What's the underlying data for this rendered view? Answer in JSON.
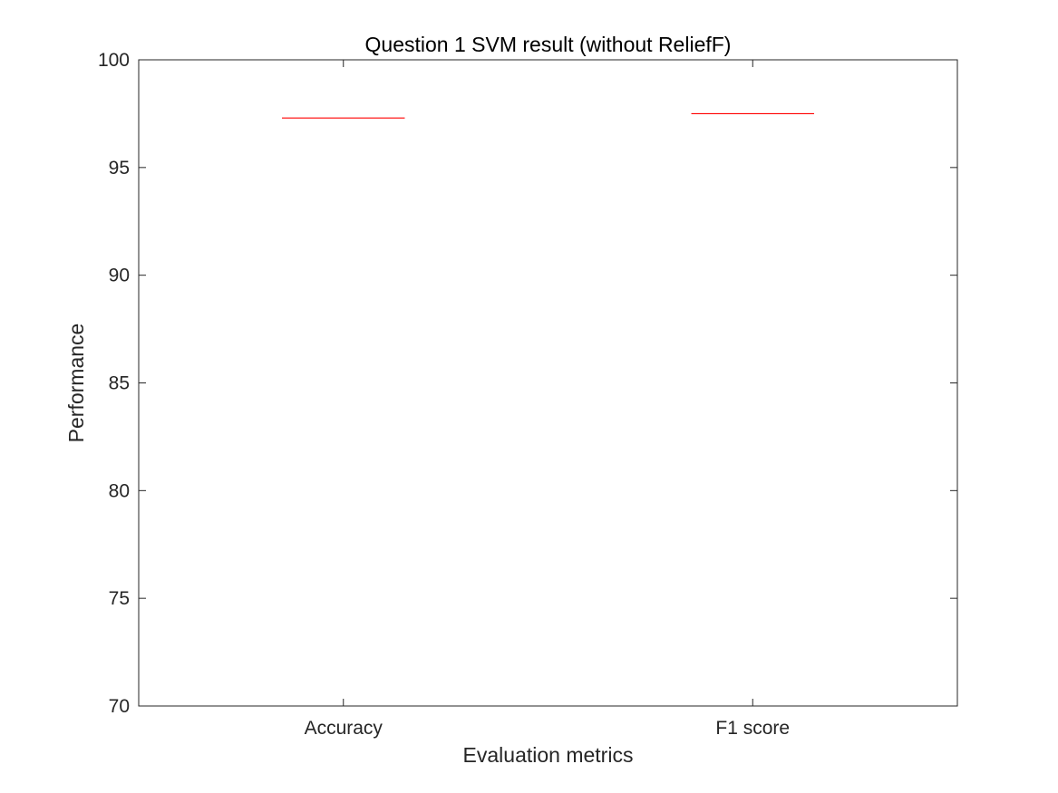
{
  "chart_data": {
    "type": "box",
    "title": "Question 1 SVM result (without ReliefF)",
    "xlabel": "Evaluation metrics",
    "ylabel": "Performance",
    "categories": [
      "Accuracy",
      "F1 score"
    ],
    "values": [
      97.3,
      97.5
    ],
    "ylim": [
      70,
      100
    ],
    "yticks": [
      70,
      75,
      80,
      85,
      90,
      95,
      100
    ],
    "ytick_labels": [
      "70",
      "75",
      "80",
      "85",
      "90",
      "95",
      "100"
    ],
    "grid": false,
    "legend": "none",
    "colors": {
      "median_line": "#ff0000",
      "axes": "#262626",
      "background": "#ffffff"
    }
  }
}
